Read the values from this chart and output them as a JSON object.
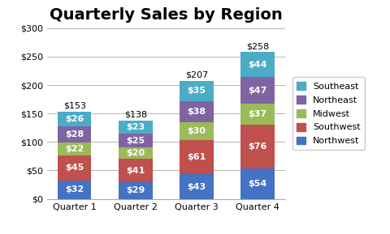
{
  "title": "Quarterly Sales by Region",
  "categories": [
    "Quarter 1",
    "Quarter 2",
    "Quarter 3",
    "Quarter 4"
  ],
  "series": [
    {
      "label": "Northwest",
      "values": [
        32,
        29,
        43,
        54
      ],
      "color": "#4472C4"
    },
    {
      "label": "Southwest",
      "values": [
        45,
        41,
        61,
        76
      ],
      "color": "#C0504D"
    },
    {
      "label": "Midwest",
      "values": [
        22,
        20,
        30,
        37
      ],
      "color": "#9BBB59"
    },
    {
      "label": "Northeast",
      "values": [
        28,
        25,
        38,
        47
      ],
      "color": "#8064A2"
    },
    {
      "label": "Southeast",
      "values": [
        26,
        23,
        35,
        44
      ],
      "color": "#4BACC6"
    }
  ],
  "totals": [
    153,
    138,
    207,
    258
  ],
  "ylim": [
    0,
    300
  ],
  "yticks": [
    0,
    50,
    100,
    150,
    200,
    250,
    300
  ],
  "ytick_labels": [
    "$0",
    "$50",
    "$100",
    "$150",
    "$200",
    "$250",
    "$300"
  ],
  "bar_width": 0.55,
  "background_color": "#FFFFFF",
  "title_fontsize": 14,
  "label_fontsize": 8,
  "total_fontsize": 8,
  "legend_fontsize": 8,
  "axis_fontsize": 8
}
